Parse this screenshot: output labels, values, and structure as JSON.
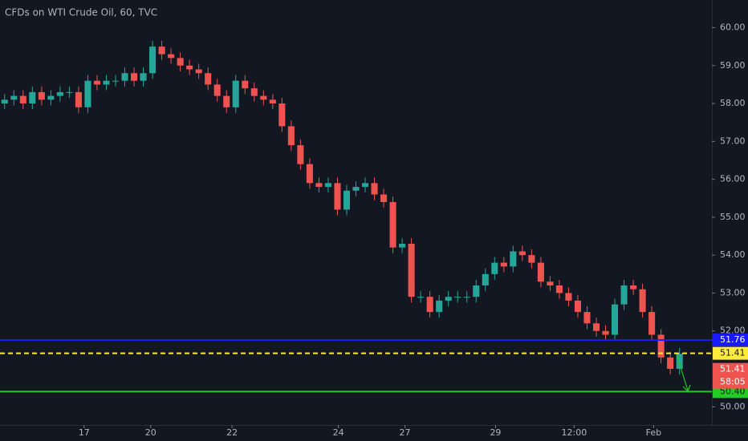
{
  "chart_data": {
    "type": "candlestick",
    "title": "CFDs on WTI Crude Oil, 60, TVC",
    "up_color": "#26a69a",
    "down_color": "#ef5350",
    "x": [
      0,
      1,
      2,
      3,
      4,
      5,
      6,
      7,
      8,
      9,
      10,
      11,
      12,
      13,
      14,
      15,
      16,
      17,
      18,
      19,
      20,
      21,
      22,
      23,
      24,
      25,
      26,
      27,
      28,
      29,
      30,
      31,
      32,
      33,
      34,
      35,
      36,
      37,
      38,
      39,
      40,
      41,
      42,
      43,
      44,
      45,
      46,
      47,
      48,
      49,
      50,
      51,
      52,
      53,
      54,
      55,
      56,
      57,
      58,
      59,
      60,
      61,
      62,
      63,
      64,
      65,
      66,
      67,
      68,
      69,
      70,
      71,
      72,
      73
    ],
    "open": [
      58.0,
      58.1,
      58.2,
      58.0,
      58.3,
      58.1,
      58.2,
      58.3,
      58.3,
      57.9,
      58.6,
      58.5,
      58.6,
      58.6,
      58.8,
      58.6,
      58.8,
      59.5,
      59.3,
      59.2,
      59.0,
      58.9,
      58.8,
      58.5,
      58.2,
      57.9,
      58.6,
      58.4,
      58.2,
      58.1,
      58.0,
      57.4,
      56.9,
      56.4,
      55.9,
      55.8,
      55.9,
      55.2,
      55.7,
      55.8,
      55.9,
      55.6,
      55.4,
      54.2,
      54.3,
      52.9,
      52.9,
      52.5,
      52.8,
      52.9,
      52.9,
      52.9,
      53.2,
      53.5,
      53.8,
      53.7,
      54.1,
      54.0,
      53.8,
      53.3,
      53.2,
      53.0,
      52.8,
      52.5,
      52.2,
      52.0,
      51.9,
      52.7,
      53.2,
      53.1,
      52.5,
      51.9,
      51.3,
      51.0
    ],
    "high": [
      58.25,
      58.35,
      58.35,
      58.45,
      58.45,
      58.35,
      58.45,
      58.45,
      58.45,
      58.75,
      58.75,
      58.75,
      58.75,
      58.95,
      58.95,
      58.95,
      59.65,
      59.65,
      59.45,
      59.35,
      59.15,
      59.05,
      58.95,
      58.65,
      58.35,
      58.75,
      58.75,
      58.55,
      58.35,
      58.25,
      58.15,
      57.55,
      57.05,
      56.55,
      56.05,
      56.05,
      56.05,
      55.85,
      55.95,
      56.05,
      56.05,
      55.75,
      55.55,
      54.45,
      54.45,
      53.05,
      53.05,
      52.95,
      53.05,
      53.05,
      53.05,
      53.35,
      53.65,
      53.95,
      53.95,
      54.25,
      54.25,
      54.15,
      53.95,
      53.45,
      53.35,
      53.15,
      52.95,
      52.65,
      52.35,
      52.15,
      52.85,
      53.35,
      53.35,
      53.25,
      52.65,
      52.05,
      51.45,
      51.55
    ],
    "low": [
      57.85,
      57.95,
      57.85,
      57.85,
      57.95,
      57.95,
      58.05,
      58.15,
      57.75,
      57.75,
      58.35,
      58.35,
      58.45,
      58.45,
      58.45,
      58.45,
      58.65,
      59.15,
      59.05,
      58.85,
      58.75,
      58.65,
      58.35,
      58.05,
      57.75,
      57.75,
      58.25,
      58.05,
      57.95,
      57.85,
      57.25,
      56.75,
      56.25,
      55.75,
      55.65,
      55.65,
      55.05,
      55.05,
      55.55,
      55.65,
      55.45,
      55.25,
      54.05,
      54.05,
      52.75,
      52.75,
      52.35,
      52.35,
      52.65,
      52.75,
      52.75,
      52.75,
      53.05,
      53.35,
      53.55,
      53.55,
      53.85,
      53.65,
      53.15,
      53.05,
      52.85,
      52.65,
      52.35,
      52.05,
      51.85,
      51.75,
      51.75,
      52.55,
      52.95,
      52.35,
      51.75,
      51.15,
      50.85,
      50.85
    ],
    "close": [
      58.1,
      58.2,
      58.0,
      58.3,
      58.1,
      58.2,
      58.3,
      58.3,
      57.9,
      58.6,
      58.5,
      58.6,
      58.6,
      58.8,
      58.6,
      58.8,
      59.5,
      59.3,
      59.2,
      59.0,
      58.9,
      58.8,
      58.5,
      58.2,
      57.9,
      58.6,
      58.4,
      58.2,
      58.1,
      58.0,
      57.4,
      56.9,
      56.4,
      55.9,
      55.8,
      55.9,
      55.2,
      55.7,
      55.8,
      55.9,
      55.6,
      55.4,
      54.2,
      54.3,
      52.9,
      52.9,
      52.5,
      52.8,
      52.9,
      52.9,
      52.9,
      53.2,
      53.5,
      53.8,
      53.7,
      54.1,
      54.0,
      53.8,
      53.3,
      53.2,
      53.0,
      52.8,
      52.5,
      52.2,
      52.0,
      51.9,
      52.7,
      53.2,
      53.1,
      52.5,
      51.9,
      51.3,
      51.0,
      51.4
    ],
    "xlim": [
      0,
      77
    ],
    "xticks": [
      {
        "value": 9.1,
        "label": "17"
      },
      {
        "value": 16.3,
        "label": "20"
      },
      {
        "value": 25.1,
        "label": "22"
      },
      {
        "value": 36.6,
        "label": "24"
      },
      {
        "value": 43.8,
        "label": "27"
      },
      {
        "value": 53.6,
        "label": "29"
      },
      {
        "value": 62.1,
        "label": "12:00"
      },
      {
        "value": 70.7,
        "label": "Feb"
      }
    ],
    "ylim": [
      49.52,
      60.73
    ],
    "yticks": [
      {
        "value": 50,
        "label": "50.00"
      },
      {
        "value": 52,
        "label": "52.00"
      },
      {
        "value": 53,
        "label": "53.00"
      },
      {
        "value": 54,
        "label": "54.00"
      },
      {
        "value": 55,
        "label": "55.00"
      },
      {
        "value": 56,
        "label": "56.00"
      },
      {
        "value": 57,
        "label": "57.00"
      },
      {
        "value": 58,
        "label": "58.00"
      },
      {
        "value": 59,
        "label": "59.00"
      },
      {
        "value": 60,
        "label": "60.00"
      }
    ],
    "levels": [
      {
        "value": 51.76,
        "label": "51.76",
        "color": "#1a1aff",
        "style": "solid"
      },
      {
        "value": 51.41,
        "label": "51.41",
        "color": "#ffeb3b",
        "style": "dashed"
      },
      {
        "value": 50.4,
        "label": "50.40",
        "color": "#22cc22",
        "style": "solid"
      }
    ],
    "price_tag": {
      "value": 51.41,
      "label": "51.41",
      "countdown": "58:05",
      "color": "#ef5350"
    }
  }
}
